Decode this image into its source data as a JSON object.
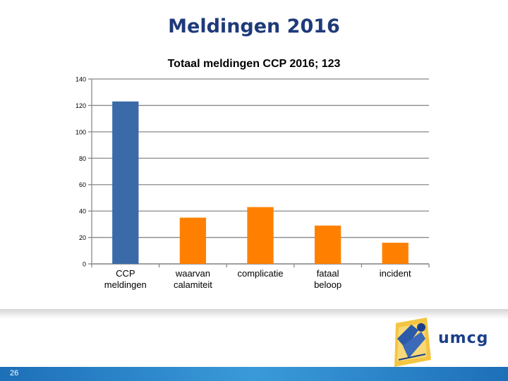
{
  "slide": {
    "title": "Meldingen 2016",
    "page_number": "26"
  },
  "logo": {
    "text": "umcg"
  },
  "colors": {
    "title": "#1f3a7a",
    "bar_blue": "#3a6aa8",
    "bar_orange": "#ff8000",
    "grid": "#898989",
    "footer_blue": "#2a86cc"
  },
  "chart_data": {
    "type": "bar",
    "title": "Totaal meldingen CCP 2016; 123",
    "categories": [
      [
        "CCP",
        "meldingen"
      ],
      [
        "waarvan",
        "calamiteit"
      ],
      [
        "complicatie"
      ],
      [
        "fataal",
        "beloop"
      ],
      [
        "incident"
      ]
    ],
    "values": [
      123,
      35,
      43,
      29,
      16
    ],
    "bar_colors": [
      "#3a6aa8",
      "#ff8000",
      "#ff8000",
      "#ff8000",
      "#ff8000"
    ],
    "ylim": [
      0,
      140
    ],
    "yticks": [
      0,
      20,
      40,
      60,
      80,
      100,
      120,
      140
    ],
    "ytick_labels": [
      "0",
      "20",
      "40",
      "60",
      "80",
      "100",
      "120",
      "140"
    ],
    "grid": true,
    "legend": "none",
    "xlabel": "",
    "ylabel": ""
  }
}
